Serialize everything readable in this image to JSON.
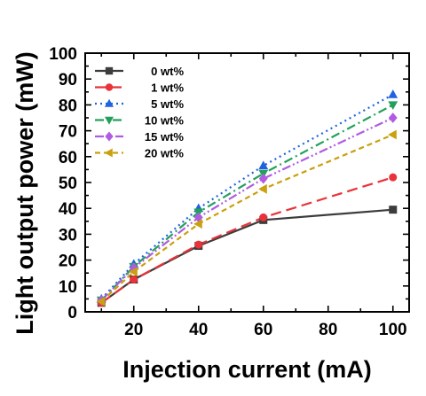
{
  "chart_data": {
    "type": "line",
    "xlabel": "Injection current (mA)",
    "ylabel": "Light output power (mW)",
    "xlim": [
      5,
      105
    ],
    "ylim": [
      0,
      100
    ],
    "xticks": [
      20,
      40,
      60,
      80,
      100
    ],
    "yticks": [
      0,
      10,
      20,
      30,
      40,
      50,
      60,
      70,
      80,
      90,
      100
    ],
    "x": [
      10,
      20,
      40,
      60,
      100
    ],
    "legend_position": "top-left",
    "grid": false,
    "series": [
      {
        "name": "0 wt%",
        "values": [
          3.5,
          12.5,
          25.5,
          35.5,
          39.5
        ],
        "color": "#3c3c3c",
        "marker": "square",
        "dash": "solid"
      },
      {
        "name": "1 wt%",
        "values": [
          3.5,
          12.5,
          26,
          36.5,
          52
        ],
        "color": "#e8333a",
        "marker": "circle",
        "dash": "dash"
      },
      {
        "name": "5 wt%",
        "values": [
          5,
          18.5,
          40,
          56.5,
          84
        ],
        "color": "#1f63e0",
        "marker": "triangle-up",
        "dash": "dot"
      },
      {
        "name": "10 wt%",
        "values": [
          4.5,
          17.5,
          38.5,
          53.5,
          80
        ],
        "color": "#22a05a",
        "marker": "triangle-down",
        "dash": "dashdot"
      },
      {
        "name": "15 wt%",
        "values": [
          4.5,
          17,
          36.5,
          51.5,
          75
        ],
        "color": "#b15be2",
        "marker": "diamond",
        "dash": "dashdotdot"
      },
      {
        "name": "20 wt%",
        "values": [
          4,
          15.5,
          34,
          47.5,
          68.5
        ],
        "color": "#c9a00e",
        "marker": "triangle-left",
        "dash": "shortdash"
      }
    ]
  }
}
